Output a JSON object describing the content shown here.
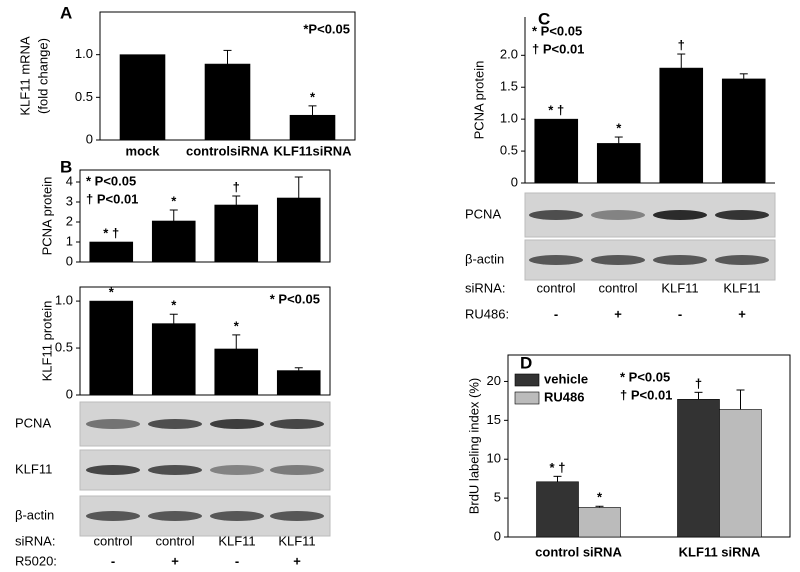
{
  "panel_labels": [
    "A",
    "B",
    "C",
    "D"
  ],
  "chart_data": [
    {
      "type": "bar",
      "y_label": [
        "KLF11 mRNA",
        "(fold change)"
      ],
      "categories": [
        "mock",
        "controlsiRNA",
        "KLF11siRNA"
      ],
      "values": [
        1.0,
        0.89,
        0.29
      ],
      "errors": [
        0,
        0.16,
        0.11
      ],
      "markers": [
        null,
        null,
        "*"
      ],
      "color": "#000000",
      "ylim": [
        0,
        1.5
      ],
      "yticks": [
        0,
        0.5,
        {
          "value": 1,
          "label": "1.0"
        }
      ],
      "annotations": [
        "*P<0.05"
      ]
    },
    {
      "type": "bar",
      "y_label": [
        "PCNA  protein"
      ],
      "values": [
        1.0,
        2.05,
        2.85,
        3.2
      ],
      "errors": [
        0,
        0.55,
        0.45,
        1.05
      ],
      "markers": [
        "* †",
        "*",
        "†",
        null
      ],
      "color": "#000000",
      "ylim": [
        0,
        4.6
      ],
      "yticks": [
        0,
        1,
        2,
        3,
        4
      ],
      "annotations": [
        "* P<0.05",
        "† P<0.01"
      ]
    },
    {
      "type": "bar",
      "y_label": [
        "KLF11 protein"
      ],
      "values": [
        1.0,
        0.76,
        0.49,
        0.26
      ],
      "errors": [
        0,
        0.1,
        0.15,
        0.03
      ],
      "markers": [
        "*",
        "*",
        "*",
        null
      ],
      "color": "#000000",
      "ylim": [
        0,
        1.15
      ],
      "yticks": [
        0,
        0.5,
        {
          "value": 1,
          "label": "1.0"
        }
      ],
      "annotations": [
        "* P<0.05"
      ]
    },
    {
      "type": "bar",
      "y_label": [
        "PCNA  protein"
      ],
      "values": [
        1.0,
        0.62,
        1.8,
        1.63
      ],
      "errors": [
        0,
        0.1,
        0.22,
        0.08
      ],
      "markers": [
        "* †",
        "*",
        "†",
        null
      ],
      "color": "#000000",
      "ylim": [
        0,
        2.6
      ],
      "yticks": [
        0,
        0.5,
        {
          "value": 1,
          "label": "1.0"
        },
        1.5,
        {
          "value": 2,
          "label": "2.0"
        }
      ],
      "annotations": [
        "* P<0.05",
        "† P<0.01"
      ]
    },
    {
      "type": "grouped_bar",
      "y_label": [
        "BrdU labeling index (%)"
      ],
      "categories": [
        "control siRNA",
        "KLF11 siRNA"
      ],
      "series": [
        {
          "name": "vehicle",
          "color": "#333333",
          "values": [
            7.1,
            17.7
          ],
          "errors": [
            0.7,
            0.9
          ],
          "markers": [
            "* †",
            "†"
          ]
        },
        {
          "name": "RU486",
          "color": "#bbbbbb",
          "values": [
            3.8,
            16.4
          ],
          "errors": [
            0.15,
            2.5
          ],
          "markers": [
            "*",
            null
          ]
        }
      ],
      "ylim": [
        0,
        23.4
      ],
      "yticks": [
        0,
        5,
        10,
        15,
        20
      ],
      "annotations": [
        "* P<0.05",
        "† P<0.01"
      ]
    }
  ],
  "blots": [
    {
      "rows": [
        "PCNA",
        "KLF11",
        "β-actin"
      ],
      "conditions": [
        {
          "label": "siRNA:",
          "values": [
            "control",
            "control",
            "KLF11",
            "KLF11"
          ]
        },
        {
          "label": "R5020:",
          "values": [
            "-",
            "+",
            "-",
            "+"
          ]
        }
      ]
    },
    {
      "rows": [
        "PCNA",
        "β-actin"
      ],
      "conditions": [
        {
          "label": "siRNA:",
          "values": [
            "control",
            "control",
            "KLF11",
            "KLF11"
          ]
        },
        {
          "label": "RU486:",
          "values": [
            "-",
            "+",
            "-",
            "+"
          ]
        }
      ]
    }
  ]
}
